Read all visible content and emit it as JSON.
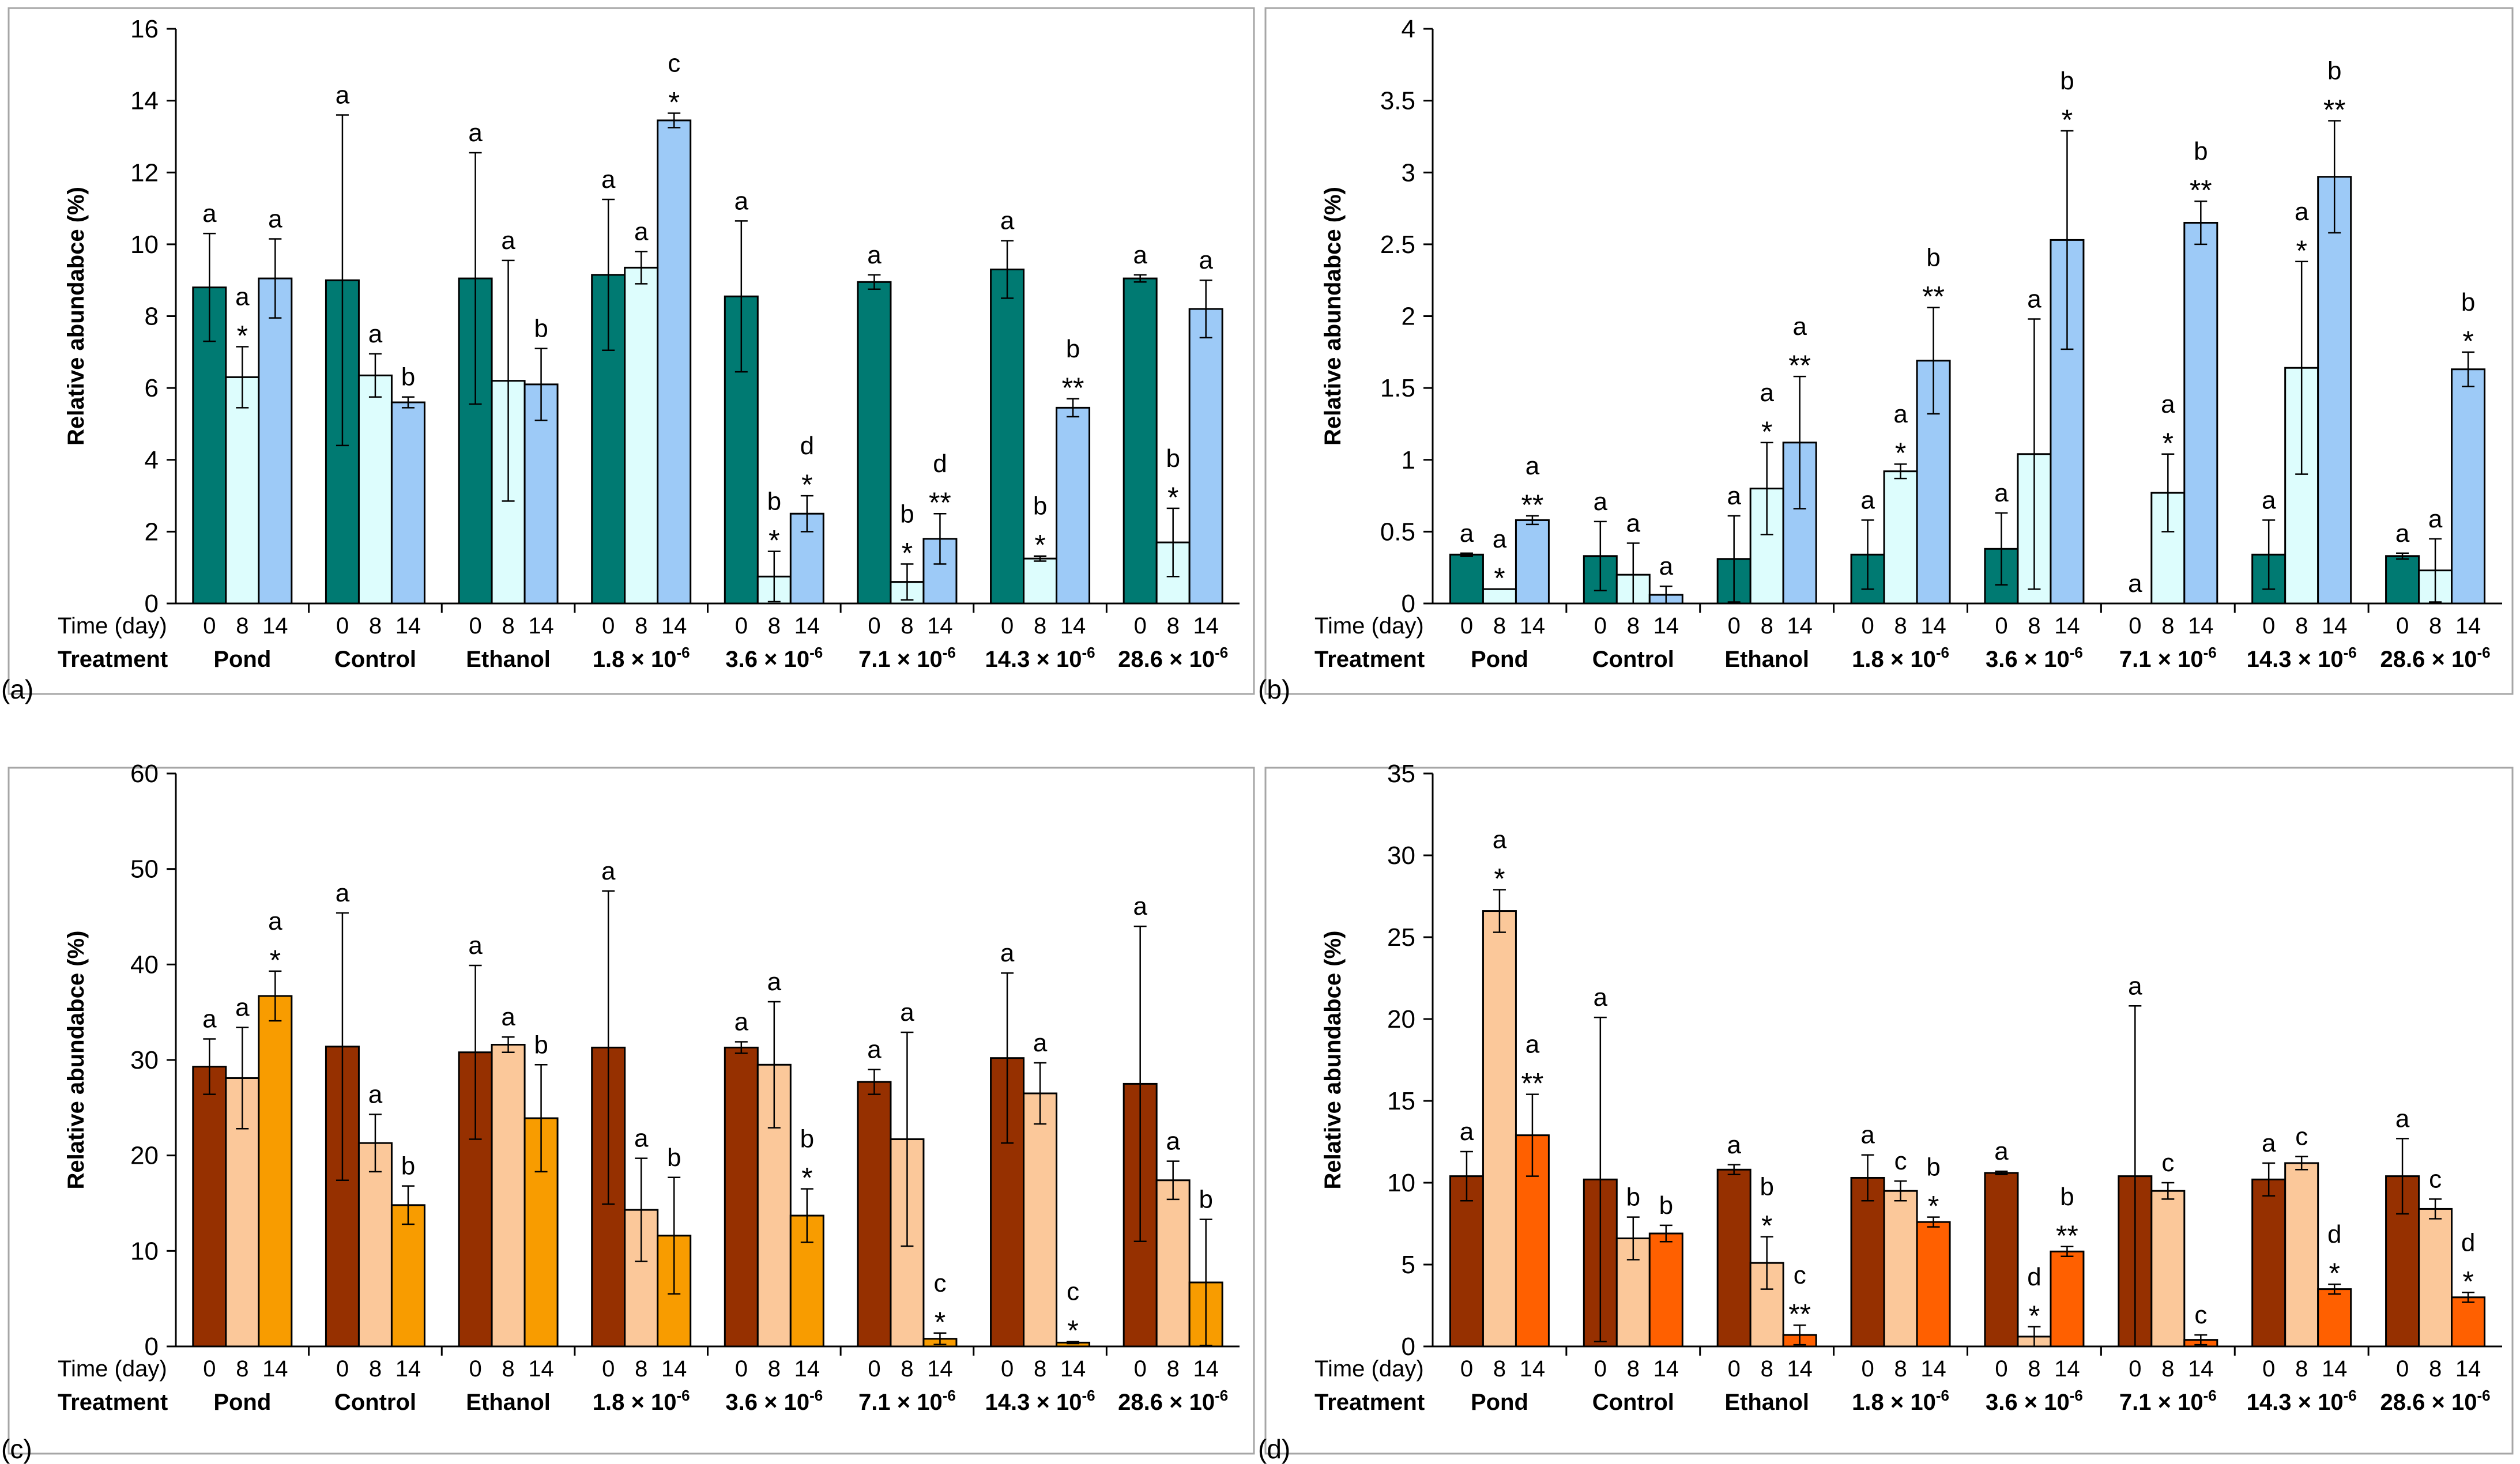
{
  "figure": {
    "time_label": "Time (day)",
    "treatment_label": "Treatment",
    "time_ticks": [
      "0",
      "8",
      "14"
    ],
    "groups": [
      "Pond",
      "Control",
      "Ethanol",
      "1.8 × 10",
      "3.6 × 10",
      "7.1 × 10",
      "14.3 × 10",
      "28.6 × 10"
    ],
    "group_exponents": [
      "",
      "",
      "",
      "-6",
      "-6",
      "-6",
      "-6",
      "-6"
    ]
  },
  "chart_data": [
    {
      "type": "bar",
      "panel_label": "(a)",
      "ylabel": "Relative abundabce (%)",
      "ylim": [
        0,
        16
      ],
      "yticks": [
        "0",
        "2",
        "4",
        "6",
        "8",
        "10",
        "12",
        "14",
        "16"
      ],
      "colors": [
        "#007a72",
        "#ddfdfd",
        "#9dcaf7"
      ],
      "series": [
        {
          "name": "0",
          "values": [
            8.8,
            9.0,
            9.05,
            9.15,
            8.55,
            8.95,
            9.3,
            9.05
          ],
          "err": [
            1.5,
            4.6,
            3.5,
            2.1,
            2.1,
            0.2,
            0.8,
            0.1
          ],
          "labels": [
            [
              "a"
            ],
            [
              "a"
            ],
            [
              "a"
            ],
            [
              "a"
            ],
            [
              "a"
            ],
            [
              "a"
            ],
            [
              "a"
            ],
            [
              "a"
            ]
          ]
        },
        {
          "name": "8",
          "values": [
            6.3,
            6.35,
            6.2,
            9.35,
            0.75,
            0.6,
            1.25,
            1.7
          ],
          "err": [
            0.85,
            0.6,
            3.35,
            0.45,
            0.7,
            0.5,
            0.07,
            0.95
          ],
          "labels": [
            [
              "a",
              "*"
            ],
            [
              "a"
            ],
            [
              "a"
            ],
            [
              "a"
            ],
            [
              "b",
              "*"
            ],
            [
              "b",
              "*"
            ],
            [
              "b",
              "*"
            ],
            [
              "b",
              "*"
            ]
          ]
        },
        {
          "name": "14",
          "values": [
            9.05,
            5.6,
            6.1,
            13.45,
            2.5,
            1.8,
            5.45,
            8.2
          ],
          "err": [
            1.1,
            0.15,
            1.0,
            0.2,
            0.5,
            0.7,
            0.25,
            0.8
          ],
          "labels": [
            [
              "a"
            ],
            [
              "b"
            ],
            [
              "b"
            ],
            [
              "c",
              "*"
            ],
            [
              "d",
              "*"
            ],
            [
              "d",
              "**"
            ],
            [
              "b",
              "**"
            ],
            [
              "a"
            ]
          ]
        }
      ]
    },
    {
      "type": "bar",
      "panel_label": "(b)",
      "ylabel": "Relative abundabce (%)",
      "ylim": [
        0,
        4
      ],
      "yticks": [
        "0",
        "0.5",
        "1",
        "1.5",
        "2",
        "2.5",
        "3",
        "3.5",
        "4"
      ],
      "colors": [
        "#007a72",
        "#ddfdfd",
        "#9dcaf7"
      ],
      "series": [
        {
          "name": "0",
          "values": [
            0.34,
            0.33,
            0.31,
            0.34,
            0.38,
            0.0,
            0.34,
            0.33
          ],
          "err": [
            0.01,
            0.24,
            0.3,
            0.24,
            0.25,
            0,
            0.24,
            0.02
          ],
          "labels": [
            [
              "a"
            ],
            [
              "a"
            ],
            [
              "a"
            ],
            [
              "a"
            ],
            [
              "a"
            ],
            [
              "a"
            ],
            [
              "a"
            ],
            [
              "a"
            ]
          ]
        },
        {
          "name": "8",
          "values": [
            0.1,
            0.2,
            0.8,
            0.92,
            1.04,
            0.77,
            1.64,
            0.23
          ],
          "err": [
            0,
            0.22,
            0.32,
            0.05,
            0.94,
            0.27,
            0.74,
            0.22
          ],
          "labels": [
            [
              "a",
              "*"
            ],
            [
              "a"
            ],
            [
              "a",
              "*"
            ],
            [
              "a",
              "*"
            ],
            [
              "a"
            ],
            [
              "a",
              "*"
            ],
            [
              "a",
              "*"
            ],
            [
              "a"
            ]
          ]
        },
        {
          "name": "14",
          "values": [
            0.58,
            0.06,
            1.12,
            1.69,
            2.53,
            2.65,
            2.97,
            1.63
          ],
          "err": [
            0.03,
            0.06,
            0.46,
            0.37,
            0.76,
            0.15,
            0.39,
            0.12
          ],
          "labels": [
            [
              "a",
              "**"
            ],
            [
              "a"
            ],
            [
              "a",
              "**"
            ],
            [
              "b",
              "**"
            ],
            [
              "b",
              "*"
            ],
            [
              "b",
              "**"
            ],
            [
              "b",
              "**"
            ],
            [
              "b",
              "*"
            ]
          ]
        }
      ]
    },
    {
      "type": "bar",
      "panel_label": "(c)",
      "ylabel": "Relative abundabce (%)",
      "ylim": [
        0,
        60
      ],
      "yticks": [
        "0",
        "10",
        "20",
        "30",
        "40",
        "50",
        "60"
      ],
      "colors": [
        "#963000",
        "#fbc89a",
        "#f89c00"
      ],
      "series": [
        {
          "name": "0",
          "values": [
            29.3,
            31.4,
            30.8,
            31.3,
            31.3,
            27.7,
            30.2,
            27.5
          ],
          "err": [
            2.9,
            14.0,
            9.1,
            16.4,
            0.6,
            1.3,
            8.9,
            16.5
          ],
          "labels": [
            [
              "a"
            ],
            [
              "a"
            ],
            [
              "a"
            ],
            [
              "a"
            ],
            [
              "a"
            ],
            [
              "a"
            ],
            [
              "a"
            ],
            [
              "a"
            ]
          ]
        },
        {
          "name": "8",
          "values": [
            28.1,
            21.3,
            31.6,
            14.3,
            29.5,
            21.7,
            26.5,
            17.4
          ],
          "err": [
            5.3,
            3.0,
            0.8,
            5.4,
            6.6,
            11.2,
            3.2,
            2.0
          ],
          "labels": [
            [
              "a"
            ],
            [
              "a"
            ],
            [
              "a"
            ],
            [
              "a"
            ],
            [
              "a"
            ],
            [
              "a"
            ],
            [
              "a"
            ],
            [
              "a"
            ]
          ]
        },
        {
          "name": "14",
          "values": [
            36.7,
            14.8,
            23.9,
            11.6,
            13.7,
            0.8,
            0.4,
            6.7
          ],
          "err": [
            2.6,
            2.0,
            5.6,
            6.1,
            2.8,
            0.6,
            0.1,
            6.6
          ],
          "labels": [
            [
              "a",
              "*"
            ],
            [
              "b"
            ],
            [
              "b"
            ],
            [
              "b"
            ],
            [
              "b",
              "*"
            ],
            [
              "c",
              "*"
            ],
            [
              "c",
              "*"
            ],
            [
              "b"
            ]
          ]
        }
      ]
    },
    {
      "type": "bar",
      "panel_label": "(d)",
      "ylabel": "Relative abundabce (%)",
      "ylim": [
        0,
        35
      ],
      "yticks": [
        "0",
        "5",
        "10",
        "15",
        "20",
        "25",
        "30",
        "35"
      ],
      "colors": [
        "#963000",
        "#fbc89a",
        "#ff6000"
      ],
      "series": [
        {
          "name": "0",
          "values": [
            10.4,
            10.2,
            10.8,
            10.3,
            10.6,
            10.4,
            10.2,
            10.4
          ],
          "err": [
            1.5,
            9.9,
            0.3,
            1.4,
            0.1,
            10.4,
            1.0,
            2.3
          ],
          "labels": [
            [
              "a"
            ],
            [
              "a"
            ],
            [
              "a"
            ],
            [
              "a"
            ],
            [
              "a"
            ],
            [
              "a"
            ],
            [
              "a"
            ],
            [
              "a"
            ]
          ]
        },
        {
          "name": "8",
          "values": [
            26.6,
            6.6,
            5.1,
            9.5,
            0.6,
            9.5,
            11.2,
            8.4
          ],
          "err": [
            1.3,
            1.3,
            1.6,
            0.6,
            0.6,
            0.5,
            0.4,
            0.6
          ],
          "labels": [
            [
              "a",
              "*"
            ],
            [
              "b"
            ],
            [
              "b",
              "*"
            ],
            [
              "c"
            ],
            [
              "d",
              "*"
            ],
            [
              "c"
            ],
            [
              "c"
            ],
            [
              "c"
            ]
          ]
        },
        {
          "name": "14",
          "values": [
            12.9,
            6.9,
            0.7,
            7.6,
            5.8,
            0.4,
            3.5,
            3.0
          ],
          "err": [
            2.5,
            0.5,
            0.6,
            0.3,
            0.3,
            0.3,
            0.3,
            0.3
          ],
          "labels": [
            [
              "a",
              "**"
            ],
            [
              "b"
            ],
            [
              "c",
              "**"
            ],
            [
              "b",
              "*"
            ],
            [
              "b",
              "**"
            ],
            [
              "c"
            ],
            [
              "d",
              "*"
            ],
            [
              "d",
              "*"
            ]
          ]
        }
      ]
    }
  ]
}
